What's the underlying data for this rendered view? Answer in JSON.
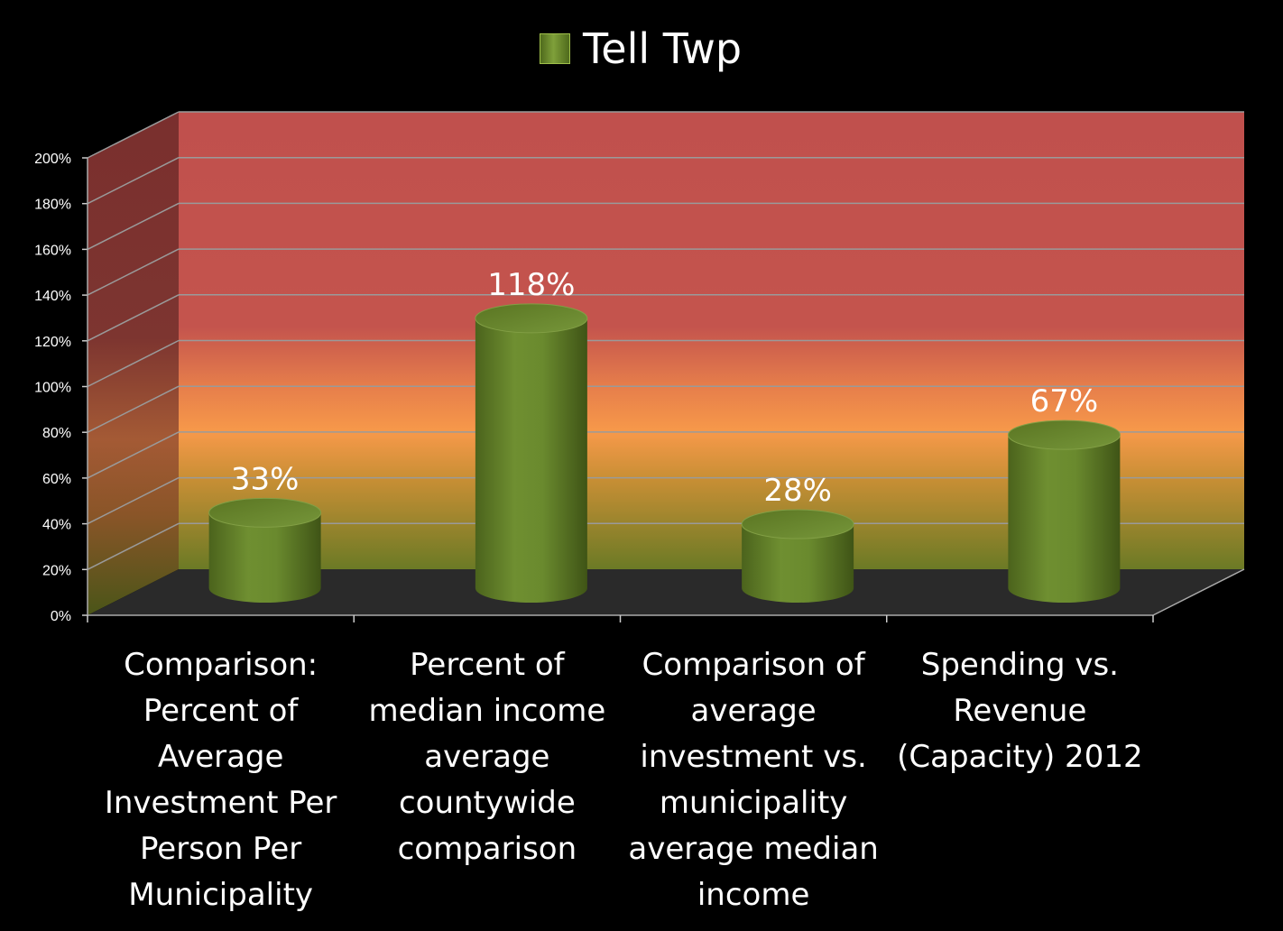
{
  "chart_data": {
    "type": "bar",
    "style": "3d-cylinder",
    "legend_position": "top",
    "series": [
      {
        "name": "Tell Twp",
        "values": [
          33,
          118,
          28,
          67
        ],
        "color": "#6b8a2a"
      }
    ],
    "categories": [
      "Comparison: Percent of Average Investment Per Person Per Municipality",
      "Percent of median income average countywide comparison",
      "Comparison of average investment vs. municipality average median income",
      "Spending vs. Revenue (Capacity) 2012"
    ],
    "data_labels": [
      "33%",
      "118%",
      "28%",
      "67%"
    ],
    "yticks": [
      "0%",
      "20%",
      "40%",
      "60%",
      "80%",
      "100%",
      "120%",
      "140%",
      "160%",
      "180%",
      "200%"
    ],
    "ylim": [
      0,
      200
    ],
    "grid": true,
    "background_bands": [
      {
        "from": 0,
        "to": 20,
        "color": "#6b7a25"
      },
      {
        "from": 20,
        "to": 70,
        "color": "#c9922f"
      },
      {
        "from": 70,
        "to": 100,
        "color": "#f39a48"
      },
      {
        "from": 100,
        "to": 200,
        "color": "#c0504d"
      }
    ]
  }
}
